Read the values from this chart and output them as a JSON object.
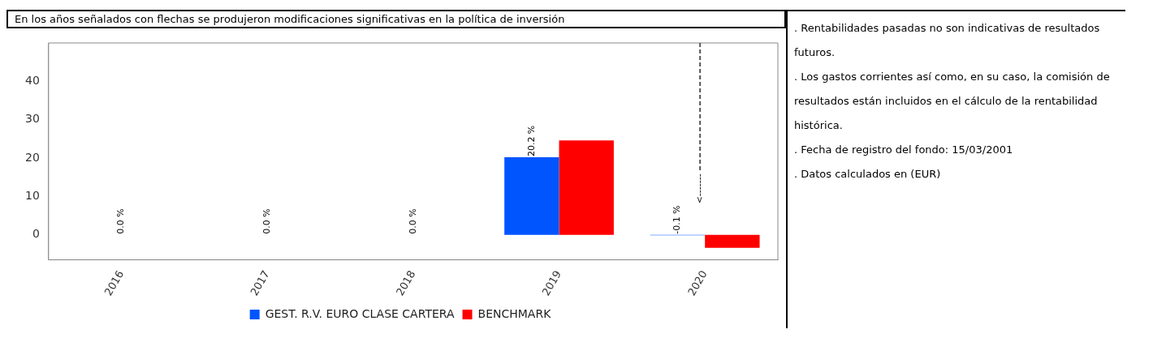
{
  "chart_data": {
    "type": "bar",
    "title": "En los años señalados con flechas se produjeron modificaciones significativas en la política de inversión",
    "categories": [
      "2016",
      "2017",
      "2018",
      "2019",
      "2020"
    ],
    "series": [
      {
        "name": "GEST. R.V. EURO CLASE CARTERA",
        "color": "#0055ff",
        "values": [
          0,
          0,
          0,
          20.2,
          -0.1
        ],
        "value_labels": [
          null,
          null,
          null,
          "20.2 %",
          "-0.1 %"
        ]
      },
      {
        "name": "BENCHMARK",
        "color": "#ff0000",
        "values": [
          null,
          null,
          null,
          24.6,
          -3.4
        ]
      }
    ],
    "ylim": [
      -6.5,
      50
    ],
    "yticks": [
      0,
      10,
      20,
      30,
      40
    ],
    "grid": false,
    "legend": "bottom",
    "ref_lines": [
      {
        "axis": "x",
        "value": "2020",
        "label": "<-------",
        "line_style": "dashed",
        "color": "#555555"
      }
    ],
    "annotations": [
      {
        "text": "0.0 %",
        "x": "2016",
        "y": 0
      },
      {
        "text": "0.0 %",
        "x": "2017",
        "y": 0
      },
      {
        "text": "0.0 %",
        "x": "2018",
        "y": 0
      },
      ". Rentabilidades pasadas no son indicativas de resultados futuros.",
      ". Los gastos corrientes así como, en su caso, la comisión de resultados están incluidos en el cálculo de la rentabilidad histórica.",
      ". Fecha de registro del fondo: 15/03/2001",
      ". Datos calculados en (EUR)"
    ]
  }
}
